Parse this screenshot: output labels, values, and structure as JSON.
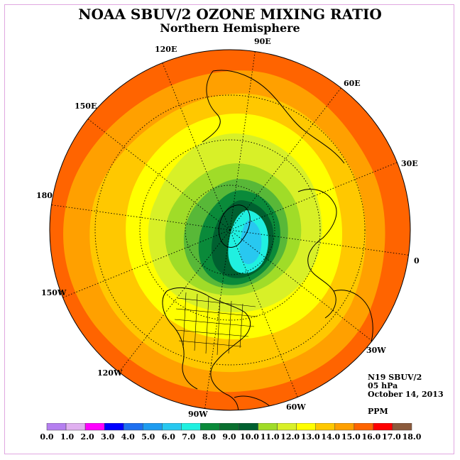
{
  "title": "NOAA SBUV/2 OZONE MIXING RATIO",
  "subtitle": "Northern Hemisphere",
  "longitude_labels": [
    "90E",
    "60E",
    "30E",
    "0",
    "30W",
    "60W",
    "90W",
    "120W",
    "150W",
    "180",
    "150E",
    "120E"
  ],
  "info": {
    "satellite": "N19 SBUV/2",
    "level": "05 hPa",
    "date": "October 14, 2013",
    "units": "PPM"
  },
  "colorbar": {
    "labels": [
      "0.0",
      "1.0",
      "2.0",
      "3.0",
      "4.0",
      "5.0",
      "6.0",
      "7.0",
      "8.0",
      "9.0",
      "10.0",
      "11.0",
      "12.0",
      "13.0",
      "14.0",
      "15.0",
      "16.0",
      "17.0",
      "18.0"
    ],
    "colors": [
      "#b57ff0",
      "#e0b0f0",
      "#ff00ff",
      "#0000ff",
      "#1e70f0",
      "#1e9cf0",
      "#28c8f0",
      "#20f0e0",
      "#0a8a3a",
      "#0a7030",
      "#006030",
      "#a0dc28",
      "#d8f028",
      "#ffff00",
      "#ffc800",
      "#ffa000",
      "#ff6400",
      "#ff0000",
      "#8b5a3c"
    ]
  },
  "contour_colors": {
    "outer": "#ff6400",
    "band_15": "#ffa000",
    "band_14": "#ffc800",
    "band_13": "#ffff00",
    "band_12": "#d8f028",
    "band_11": "#a0dc28",
    "band_10": "#58b838",
    "band_9": "#0a8a3a",
    "band_8": "#006030",
    "band_7": "#20f0e0",
    "band_6": "#28c8f0"
  }
}
